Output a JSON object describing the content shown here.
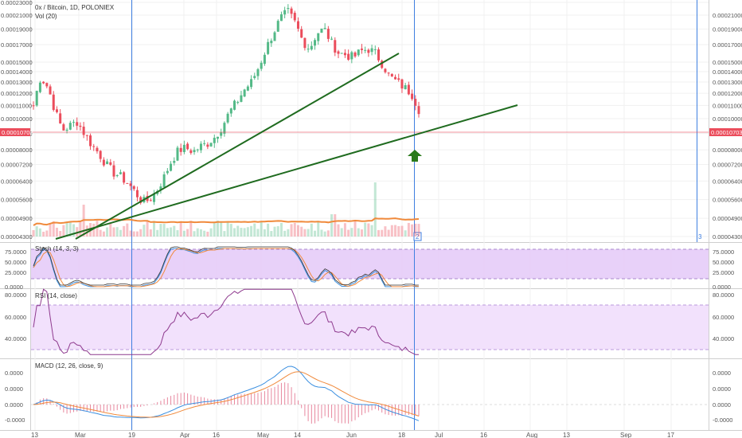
{
  "header": {
    "symbol_line": "0x / Bitcoin, 1D, POLONIEX",
    "volume_label": "Vol (20)"
  },
  "price_scale": {
    "left_labels": [
      "0.00023000",
      "0.00021000",
      "0.00019000",
      "0.00017000",
      "0.00015000",
      "0.00014000",
      "0.00013000",
      "0.00012000",
      "0.00011000",
      "0.00010000",
      "0.00009000",
      "0.00008000",
      "0.00007200",
      "0.00006400",
      "0.00005600",
      "0.00004900",
      "0.00004300"
    ],
    "right_labels": [
      "0.00021000",
      "0.00019000",
      "0.00017000",
      "0.00015000",
      "0.00014000",
      "0.00013000",
      "0.00012000",
      "0.00011000",
      "0.00010000",
      "0.00009000",
      "0.00008000",
      "0.00007200",
      "0.00006400",
      "0.00005600",
      "0.00004900",
      "0.00004300"
    ],
    "current_price": "0.00010703",
    "log_scale": true
  },
  "markers": {
    "vline_label_a": "2",
    "vline_label_b": "3"
  },
  "stoch": {
    "label": "Stoch (14, 3, 3)",
    "left_labels": [
      "75.0000",
      "50.0000",
      "25.0000",
      "0.0000"
    ],
    "right_labels": [
      "75.0000",
      "50.0000",
      "25.0000",
      "0.0000"
    ]
  },
  "rsi": {
    "label": "RSI (14, close)",
    "left_labels": [
      "80.0000",
      "60.0000",
      "40.0000"
    ],
    "right_labels": [
      "80.0000",
      "60.0000",
      "40.0000"
    ]
  },
  "macd": {
    "label": "MACD (12, 26, close, 9)",
    "left_labels": [
      "0.0000",
      "0.0000",
      "0.0000",
      "-0.0000"
    ],
    "right_labels": [
      "0.0000",
      "0.0000",
      "0.0000",
      "-0.0000"
    ]
  },
  "time_axis": {
    "labels": [
      "13",
      "Mar",
      "19",
      "Apr",
      "16",
      "May",
      "14",
      "Jun",
      "18",
      "Jul",
      "16",
      "Aug",
      "13",
      "Sep",
      "17"
    ]
  },
  "colors": {
    "up": "#53b987",
    "down": "#eb4d5c",
    "trendline": "#1f6b1f",
    "vline": "#3f7fe0",
    "stoch_band": "#e3c9f7",
    "rsi_band": "#f0dcfb",
    "volume_ma": "#f08a3c",
    "macd_line": "#3a8fe0",
    "signal_line": "#f08a3c",
    "price_line": "#eb4d5c"
  },
  "chart_data": {
    "type": "candlestick",
    "series": [
      {
        "name": "0x / Bitcoin, 1D, POLONIEX",
        "close_path": [
          0.00011,
          0.000135,
          0.000125,
          0.000105,
          9.2e-05,
          9.5e-05,
          9.8e-05,
          9e-05,
          8.3e-05,
          7.8e-05,
          7.2e-05,
          6.8e-05,
          6.6e-05,
          6.3e-05,
          5.9e-05,
          5.5e-05,
          5.6e-05,
          6e-05,
          6.6e-05,
          7.4e-05,
          8e-05,
          8.1e-05,
          7.9e-05,
          8.2e-05,
          8.4e-05,
          8.8e-05,
          9.5e-05,
          0.000105,
          0.000113,
          0.000123,
          0.00013,
          0.000145,
          0.000165,
          0.000185,
          0.000205,
          0.000215,
          0.000198,
          0.000175,
          0.000165,
          0.000185,
          0.00019,
          0.000172,
          0.00016,
          0.000158,
          0.000155,
          0.000162,
          0.000165,
          0.00016,
          0.000148,
          0.000135,
          0.00013,
          0.000125,
          0.00012,
          0.000107
        ]
      }
    ],
    "indicators": [
      "Vol (20)",
      "Stoch (14, 3, 3)",
      "RSI (14, close)",
      "MACD (12, 26, close, 9)"
    ]
  }
}
